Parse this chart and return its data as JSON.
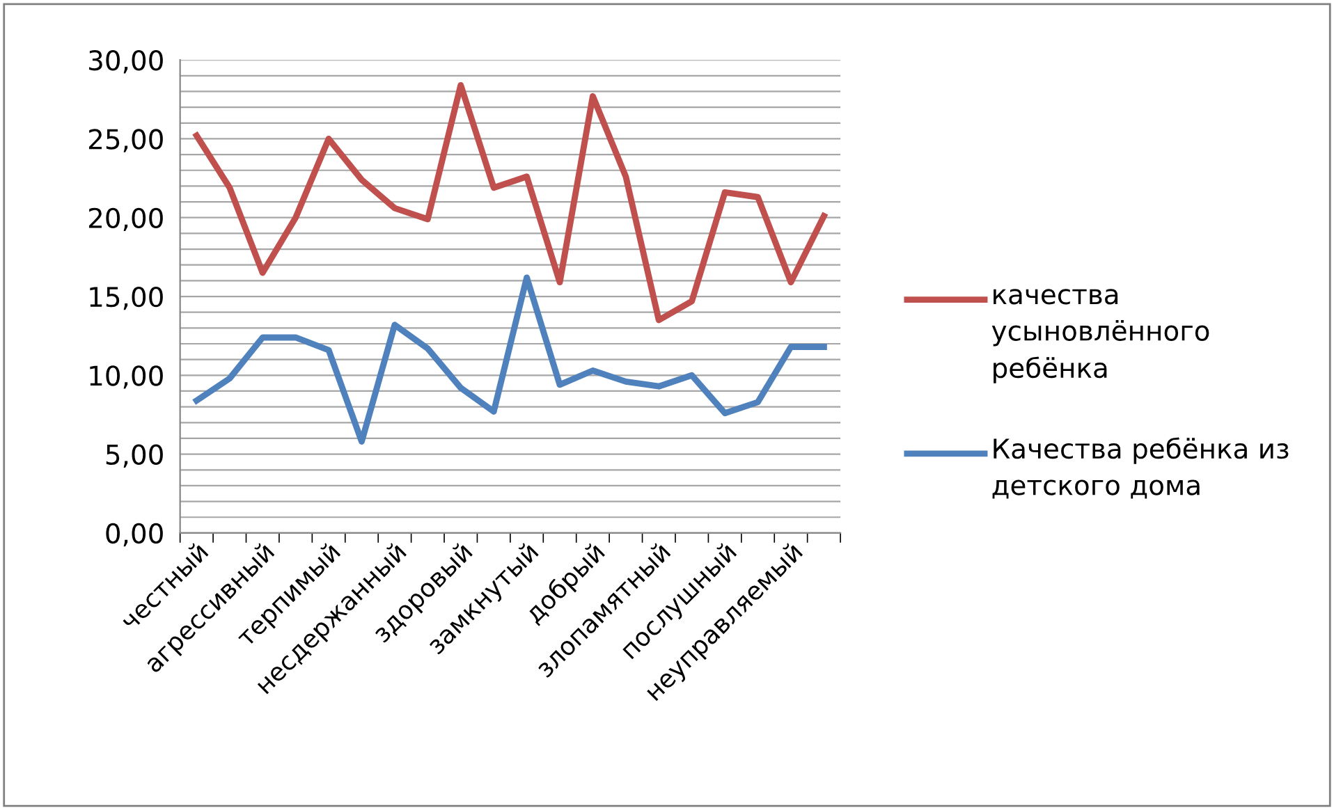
{
  "chart_data": {
    "type": "line",
    "categories": [
      "честный",
      null,
      "агрессивный",
      null,
      "терпимый",
      null,
      "несдержанный",
      null,
      "здоровый",
      null,
      "замкнутый",
      null,
      "добрый",
      null,
      "злопамятный",
      null,
      "послушный",
      null,
      "неуправляемый",
      null
    ],
    "series": [
      {
        "name": "качества усыновлённого ребёнка",
        "color": "#c0504d",
        "values": [
          25.2,
          21.9,
          16.5,
          20.0,
          25.0,
          22.4,
          20.6,
          19.9,
          28.4,
          21.9,
          22.6,
          15.9,
          27.7,
          22.6,
          13.5,
          14.7,
          21.6,
          21.3,
          15.9,
          20.1
        ]
      },
      {
        "name": "Качества ребёнка из детского дома",
        "color": "#4f81bd",
        "values": [
          8.4,
          9.8,
          12.4,
          12.4,
          11.6,
          5.8,
          13.2,
          11.7,
          9.2,
          7.7,
          16.2,
          9.4,
          10.3,
          9.6,
          9.3,
          10.0,
          7.6,
          8.3,
          11.8,
          11.8
        ]
      }
    ],
    "ylim": [
      0,
      30
    ],
    "yticks": [
      {
        "value": 0,
        "label": "0,00"
      },
      {
        "value": 1,
        "label": null
      },
      {
        "value": 2,
        "label": null
      },
      {
        "value": 3,
        "label": null
      },
      {
        "value": 4,
        "label": null
      },
      {
        "value": 5,
        "label": "5,00"
      },
      {
        "value": 6,
        "label": null
      },
      {
        "value": 7,
        "label": null
      },
      {
        "value": 8,
        "label": null
      },
      {
        "value": 9,
        "label": null
      },
      {
        "value": 10,
        "label": "10,00"
      },
      {
        "value": 11,
        "label": null
      },
      {
        "value": 12,
        "label": null
      },
      {
        "value": 13,
        "label": null
      },
      {
        "value": 14,
        "label": null
      },
      {
        "value": 15,
        "label": "15,00"
      },
      {
        "value": 16,
        "label": null
      },
      {
        "value": 17,
        "label": null
      },
      {
        "value": 18,
        "label": null
      },
      {
        "value": 19,
        "label": null
      },
      {
        "value": 20,
        "label": "20,00"
      },
      {
        "value": 21,
        "label": null
      },
      {
        "value": 22,
        "label": null
      },
      {
        "value": 23,
        "label": null
      },
      {
        "value": 24,
        "label": null
      },
      {
        "value": 25,
        "label": "25,00"
      },
      {
        "value": 26,
        "label": null
      },
      {
        "value": 27,
        "label": null
      },
      {
        "value": 28,
        "label": null
      },
      {
        "value": 29,
        "label": null
      },
      {
        "value": 30,
        "label": "30,00"
      }
    ],
    "grid": "y",
    "legend": "right",
    "marker": "none",
    "line_style": "solid"
  }
}
